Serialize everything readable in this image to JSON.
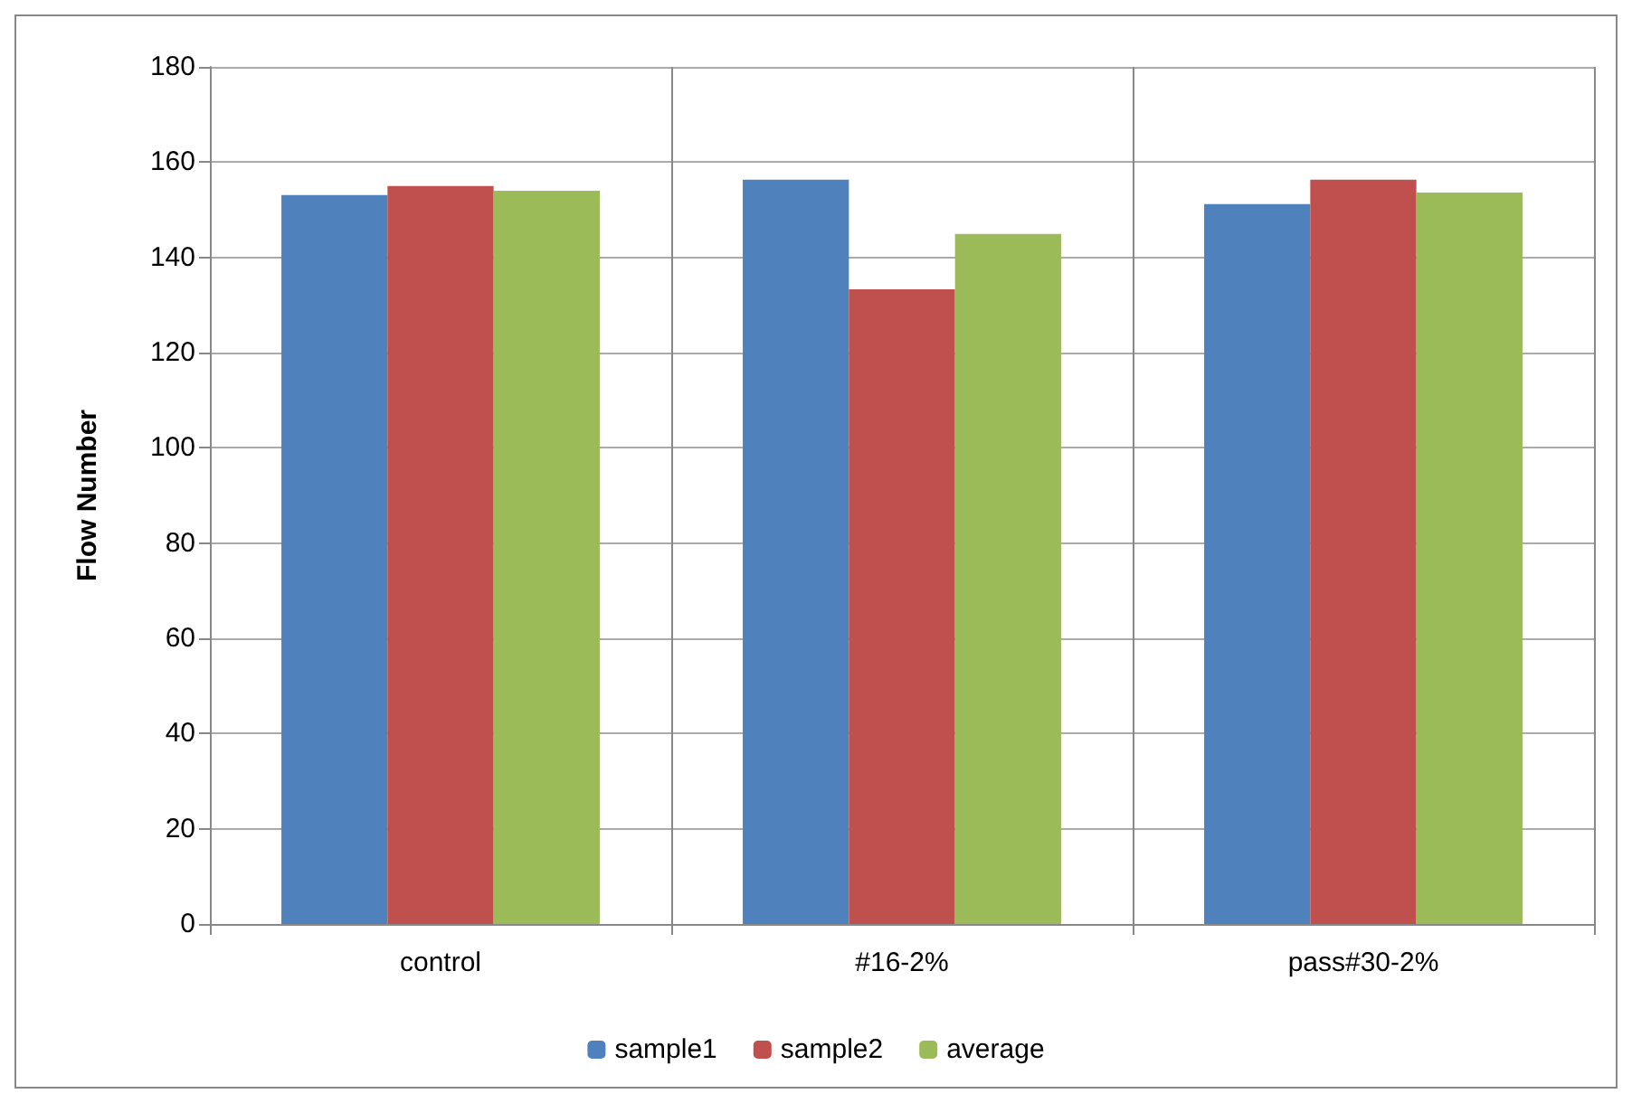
{
  "chart_data": {
    "type": "bar",
    "ylabel": "Flow Number",
    "categories": [
      "control",
      "#16-2%",
      "pass#30-2%"
    ],
    "series": [
      {
        "name": "sample1",
        "color": "#4f81bd",
        "values": [
          153.1,
          156.3,
          151.2
        ]
      },
      {
        "name": "sample2",
        "color": "#c0504d",
        "values": [
          155,
          133.3,
          156.3
        ]
      },
      {
        "name": "average",
        "color": "#9bbb59",
        "values": [
          154,
          144.9,
          153.6
        ]
      }
    ],
    "ylim": [
      0,
      180
    ],
    "yticks": [
      0,
      20,
      40,
      60,
      80,
      100,
      120,
      140,
      160,
      180
    ],
    "grid": true,
    "legend": "bottom"
  }
}
